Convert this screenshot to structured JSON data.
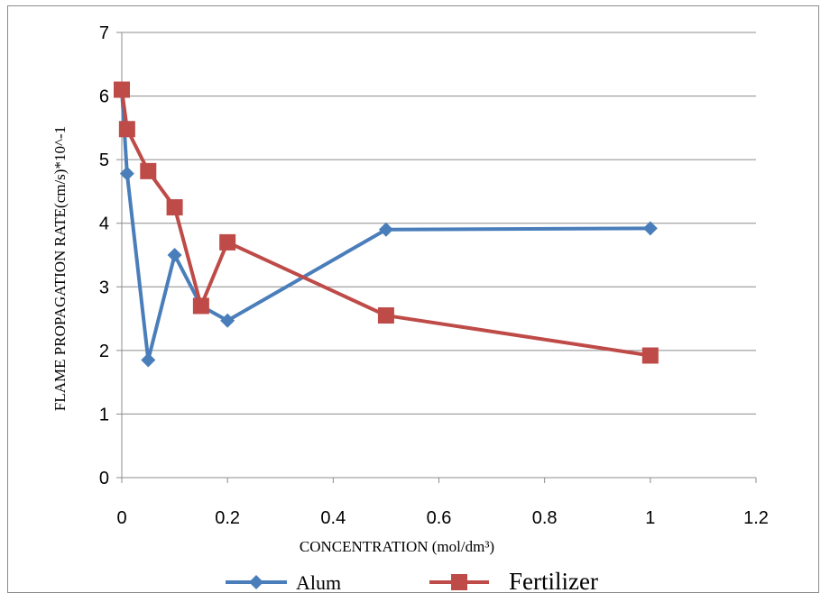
{
  "chart_data": {
    "type": "line",
    "xlabel": "CONCENTRATION (mol/dm³)",
    "ylabel": "FLAME PROPAGATION RATE(cm/s)*10^-1",
    "xlim": [
      0,
      1.2
    ],
    "ylim": [
      0,
      7
    ],
    "x_ticks": [
      "0",
      "0.2",
      "0.4",
      "0.6",
      "0.8",
      "1",
      "1.2"
    ],
    "y_ticks": [
      "0",
      "1",
      "2",
      "3",
      "4",
      "5",
      "6",
      "7"
    ],
    "grid": "horizontal",
    "legend_position": "bottom",
    "series": [
      {
        "name": "Alum",
        "color": "#4a7ebb",
        "marker": "diamond",
        "x": [
          0,
          0.01,
          0.05,
          0.1,
          0.15,
          0.2,
          0.5,
          1
        ],
        "y": [
          6.1,
          4.78,
          1.85,
          3.5,
          2.7,
          2.47,
          3.9,
          3.92
        ]
      },
      {
        "name": "Fertilizer",
        "color": "#be4b48",
        "marker": "square",
        "x": [
          0,
          0.01,
          0.05,
          0.1,
          0.15,
          0.2,
          0.5,
          1
        ],
        "y": [
          6.1,
          5.48,
          4.82,
          4.25,
          2.7,
          3.7,
          2.55,
          1.92
        ]
      }
    ]
  }
}
